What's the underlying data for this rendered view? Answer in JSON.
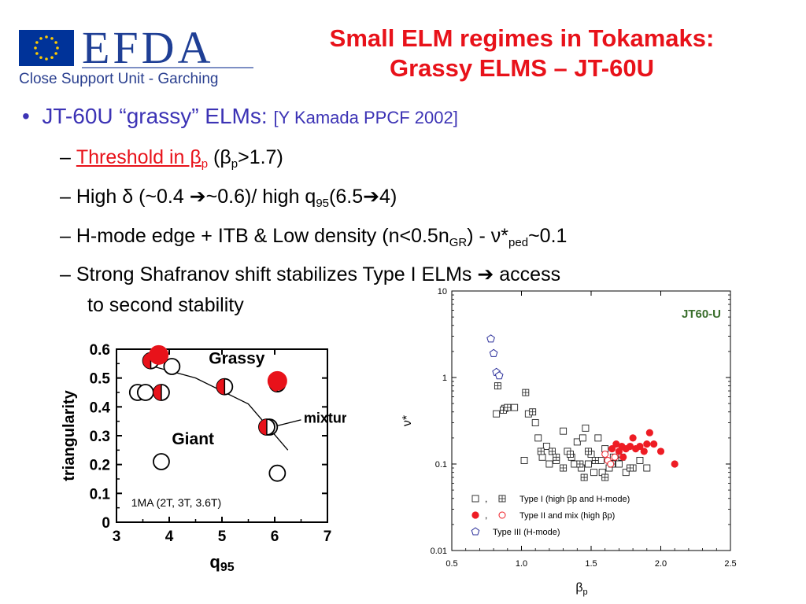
{
  "logo": {
    "wordmark": "EFDA",
    "subtitle": "Close Support Unit - Garching",
    "flag_icon": "eu-flag-icon"
  },
  "title": {
    "line1": "Small ELM regimes in Tokamaks:",
    "line2": "Grassy ELMS – JT-60U"
  },
  "bullets": {
    "main": "JT-60U “grassy” ELMs:",
    "main_ref": "[Y Kamada PPCF 2002]",
    "sub1_a": "Threshold in β",
    "sub1_a_sub": "p",
    "sub1_b": " (β",
    "sub1_b_sub": "p",
    "sub1_c": ">1.7)",
    "sub2_a": "High δ (~0.4 ➔~0.6)/ high q",
    "sub2_sub": "95",
    "sub2_b": "(6.5➔4)",
    "sub3_a": "H-mode edge + ITB & Low density (n<0.5n",
    "sub3_sub": "GR",
    "sub3_b": ") - ν*",
    "sub3_sub2": "ped",
    "sub3_c": "~0.1",
    "sub4_line1": "Strong Shafranov shift stabilizes Type I ELMs ➔ access",
    "sub4_line2": "to second stability"
  },
  "chart_data": [
    {
      "type": "scatter",
      "xlabel": "q95",
      "ylabel": "triangularity",
      "xlim": [
        3,
        7
      ],
      "ylim": [
        0,
        0.6
      ],
      "xticks": [
        "3",
        "4",
        "5",
        "6",
        "7"
      ],
      "yticks": [
        "0",
        "0.1",
        "0.2",
        "0.3",
        "0.4",
        "0.5",
        "0.6"
      ],
      "annotations": [
        "Grassy",
        "Giant",
        "mixture",
        "1MA  (2T, 3T, 3.6T)"
      ],
      "series": [
        {
          "marker": "open-circle",
          "points": [
            [
              3.4,
              0.45
            ],
            [
              3.55,
              0.45
            ],
            [
              3.85,
              0.21
            ],
            [
              4.05,
              0.54
            ],
            [
              6.05,
              0.17
            ],
            [
              6.05,
              0.48
            ],
            [
              5.9,
              0.33
            ]
          ]
        },
        {
          "marker": "half-filled-circle",
          "points": [
            [
              3.65,
              0.56
            ],
            [
              3.85,
              0.45
            ],
            [
              5.05,
              0.47
            ],
            [
              5.85,
              0.33
            ],
            [
              6.05,
              0.48
            ]
          ]
        },
        {
          "marker": "filled-circle",
          "points": [
            [
              3.8,
              0.58
            ],
            [
              6.05,
              0.49
            ]
          ]
        }
      ],
      "trend_line": [
        [
          3.7,
          0.54
        ],
        [
          4.5,
          0.5
        ],
        [
          5.5,
          0.41
        ],
        [
          6.25,
          0.25
        ]
      ]
    },
    {
      "type": "scatter",
      "title": "JT60-U",
      "xlabel": "βp",
      "ylabel": "ν*",
      "xlim": [
        0.5,
        2.5
      ],
      "ylim": [
        0.01,
        10
      ],
      "yscale": "log",
      "xticks": [
        "0.5",
        "1.0",
        "1.5",
        "2.0",
        "2.5"
      ],
      "yticks": [
        "0.01",
        "0.1",
        "1",
        "10"
      ],
      "legend": [
        {
          "markers": "□ ,  ⊞",
          "label": "Type I (high  βp and H-mode)"
        },
        {
          "markers": "● ,  ○",
          "label": "Type II and mix (high  βp)"
        },
        {
          "markers": "⬠",
          "label": "Type III (H-mode)"
        }
      ],
      "legend_position": "bottom-left",
      "series": [
        {
          "name": "Type I (high  βp and H-mode)",
          "marker": "open-square",
          "points": [
            [
              0.82,
              0.38
            ],
            [
              0.88,
              0.44
            ],
            [
              0.95,
              0.45
            ],
            [
              1.02,
              0.11
            ],
            [
              1.05,
              0.38
            ],
            [
              1.1,
              0.3
            ],
            [
              1.12,
              0.2
            ],
            [
              1.15,
              0.12
            ],
            [
              1.18,
              0.16
            ],
            [
              1.2,
              0.1
            ],
            [
              1.25,
              0.11
            ],
            [
              1.3,
              0.24
            ],
            [
              1.33,
              0.14
            ],
            [
              1.38,
              0.1
            ],
            [
              1.4,
              0.18
            ],
            [
              1.43,
              0.09
            ],
            [
              1.46,
              0.26
            ],
            [
              1.5,
              0.13
            ],
            [
              1.52,
              0.08
            ],
            [
              1.55,
              0.2
            ],
            [
              1.57,
              0.11
            ],
            [
              1.6,
              0.15
            ],
            [
              1.63,
              0.09
            ],
            [
              1.66,
              0.12
            ],
            [
              1.7,
              0.1
            ],
            [
              1.75,
              0.08
            ],
            [
              1.8,
              0.09
            ],
            [
              1.85,
              0.11
            ],
            [
              1.9,
              0.09
            ],
            [
              1.48,
              0.1
            ],
            [
              1.36,
              0.12
            ],
            [
              1.44,
              0.2
            ],
            [
              1.58,
              0.08
            ]
          ]
        },
        {
          "name": "Type I (high  βp and H-mode)",
          "marker": "crossed-square",
          "points": [
            [
              0.83,
              0.8
            ],
            [
              0.87,
              0.42
            ],
            [
              0.9,
              0.45
            ],
            [
              1.03,
              0.67
            ],
            [
              1.08,
              0.4
            ],
            [
              1.14,
              0.14
            ],
            [
              1.22,
              0.14
            ],
            [
              1.3,
              0.09
            ],
            [
              1.35,
              0.13
            ],
            [
              1.42,
              0.1
            ],
            [
              1.48,
              0.14
            ],
            [
              1.53,
              0.11
            ],
            [
              1.6,
              0.07
            ],
            [
              1.65,
              0.1
            ],
            [
              1.72,
              0.12
            ],
            [
              1.78,
              0.09
            ],
            [
              1.25,
              0.12
            ],
            [
              1.45,
              0.07
            ]
          ]
        },
        {
          "name": "Type II and mix (high  βp)",
          "marker": "filled-circle",
          "points": [
            [
              1.65,
              0.15
            ],
            [
              1.68,
              0.17
            ],
            [
              1.7,
              0.14
            ],
            [
              1.72,
              0.16
            ],
            [
              1.75,
              0.15
            ],
            [
              1.78,
              0.16
            ],
            [
              1.8,
              0.2
            ],
            [
              1.82,
              0.15
            ],
            [
              1.85,
              0.16
            ],
            [
              1.88,
              0.14
            ],
            [
              1.92,
              0.23
            ],
            [
              1.95,
              0.17
            ],
            [
              2.0,
              0.14
            ],
            [
              2.1,
              0.1
            ],
            [
              1.9,
              0.17
            ],
            [
              1.73,
              0.12
            ]
          ]
        },
        {
          "name": "Type II and mix (high  βp)",
          "marker": "open-circle-red",
          "points": [
            [
              1.6,
              0.13
            ],
            [
              1.62,
              0.11
            ],
            [
              1.64,
              0.1
            ],
            [
              1.67,
              0.12
            ]
          ]
        },
        {
          "name": "Type III (H-mode)",
          "marker": "open-pentagon",
          "points": [
            [
              0.78,
              2.8
            ],
            [
              0.8,
              1.9
            ],
            [
              0.82,
              1.15
            ],
            [
              0.84,
              1.05
            ]
          ]
        }
      ]
    }
  ]
}
